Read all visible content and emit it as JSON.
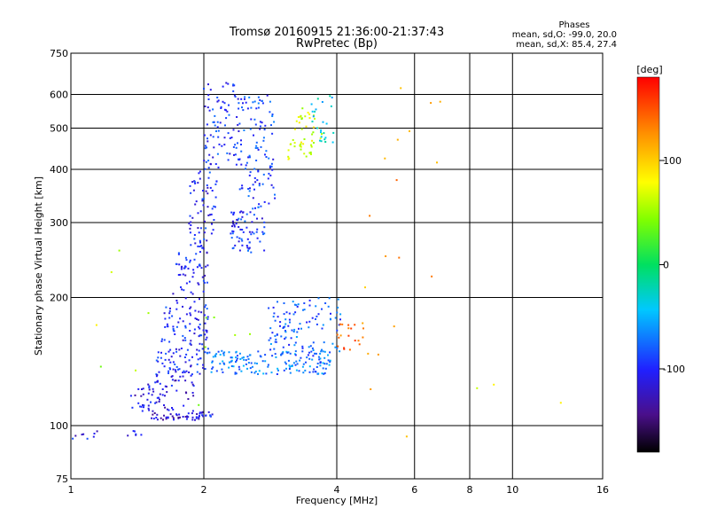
{
  "header": {
    "title_line1": "Tromsø 20160915 21:36:00-21:37:43",
    "title_line2": "RwPretec (Bp)",
    "stats_title": "Phases",
    "stats_o": "mean, sd,O: -99.0, 20.0",
    "stats_x": "mean, sd,X: 85.4, 27.4"
  },
  "chart_data": {
    "type": "scatter",
    "title": "Tromsø 20160915 21:36:00-21:37:43",
    "subtitle": "RwPretec (Bp)",
    "xlabel": "Frequency [MHz]",
    "ylabel": "Stationary phase Virtual Height [km]",
    "xscale": "log",
    "yscale": "log",
    "xlim": [
      1,
      16
    ],
    "ylim": [
      75,
      750
    ],
    "x_ticks": [
      1,
      2,
      4,
      6,
      8,
      10,
      16
    ],
    "y_ticks": [
      75,
      100,
      200,
      300,
      400,
      500,
      600,
      750
    ],
    "grid": true,
    "colorbar": {
      "label": "[deg]",
      "range": [
        -180,
        180
      ],
      "ticks": [
        -100,
        0,
        100
      ],
      "colormap": "rainbow"
    },
    "clusters": [
      {
        "x_range": [
          1.0,
          1.15
        ],
        "y_range": [
          93,
          97
        ],
        "phase": -110,
        "n": 8
      },
      {
        "x_range": [
          1.3,
          1.45
        ],
        "y_range": [
          94,
          98
        ],
        "phase": -110,
        "n": 6
      },
      {
        "x_range": [
          1.5,
          1.95
        ],
        "y_range": [
          103,
          107
        ],
        "phase": -120,
        "n": 40
      },
      {
        "x_range": [
          1.95,
          2.1
        ],
        "y_range": [
          105,
          108
        ],
        "phase": -100,
        "n": 16
      },
      {
        "x_range": [
          1.35,
          1.9
        ],
        "y_range": [
          108,
          130
        ],
        "phase": -115,
        "n": 70
      },
      {
        "x_range": [
          1.55,
          2.0
        ],
        "y_range": [
          130,
          150
        ],
        "phase": -100,
        "n": 60
      },
      {
        "x_range": [
          1.6,
          2.05
        ],
        "y_range": [
          150,
          190
        ],
        "phase": -100,
        "n": 80
      },
      {
        "x_range": [
          1.7,
          2.05
        ],
        "y_range": [
          190,
          260
        ],
        "phase": -105,
        "n": 60
      },
      {
        "x_range": [
          1.85,
          2.15
        ],
        "y_range": [
          260,
          400
        ],
        "phase": -100,
        "n": 70
      },
      {
        "x_range": [
          2.0,
          2.4
        ],
        "y_range": [
          400,
          640
        ],
        "phase": -95,
        "n": 90
      },
      {
        "x_range": [
          2.3,
          2.75
        ],
        "y_range": [
          255,
          320
        ],
        "phase": -95,
        "n": 70
      },
      {
        "x_range": [
          2.4,
          2.9
        ],
        "y_range": [
          320,
          600
        ],
        "phase": -90,
        "n": 110
      },
      {
        "x_range": [
          2.0,
          3.9
        ],
        "y_range": [
          132,
          150
        ],
        "phase": -70,
        "n": 160
      },
      {
        "x_range": [
          2.8,
          4.1
        ],
        "y_range": [
          145,
          200
        ],
        "phase": -80,
        "n": 120
      },
      {
        "x_range": [
          3.1,
          3.7
        ],
        "y_range": [
          420,
          560
        ],
        "phase": 70,
        "n": 50
      },
      {
        "x_range": [
          3.5,
          3.95
        ],
        "y_range": [
          460,
          600
        ],
        "phase": -40,
        "n": 25
      },
      {
        "x_range": [
          4.0,
          4.6
        ],
        "y_range": [
          150,
          175
        ],
        "phase": 140,
        "n": 20
      },
      {
        "x_range": [
          4.5,
          7.0
        ],
        "y_range": [
          90,
          650
        ],
        "phase": 120,
        "n": 18
      },
      {
        "x_range": [
          1.05,
          2.6
        ],
        "y_range": [
          110,
          280
        ],
        "phase": 60,
        "n": 12
      },
      {
        "x_range": [
          8.0,
          13.0
        ],
        "y_range": [
          110,
          130
        ],
        "phase": 80,
        "n": 3
      }
    ]
  }
}
